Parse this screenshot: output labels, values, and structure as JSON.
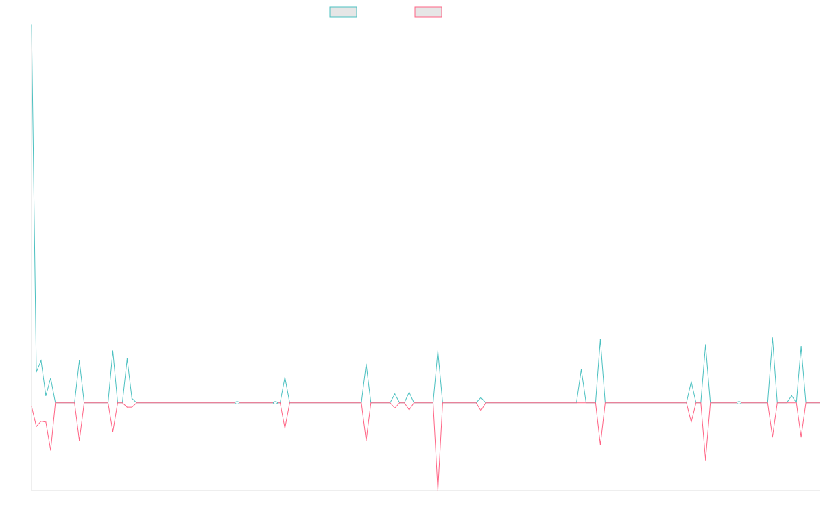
{
  "chart_data": {
    "type": "line",
    "title": "",
    "xlabel": "",
    "ylabel": "",
    "grid": false,
    "legend_position": "top-center",
    "x_count": 161,
    "ylim": [
      -10,
      43
    ],
    "series": [
      {
        "color": "#4bc0c0",
        "fill": "#e6e6e6",
        "points": [
          [
            0,
            43
          ],
          [
            1,
            3.5
          ],
          [
            2,
            4.8
          ],
          [
            3,
            0.8
          ],
          [
            4,
            2.8
          ],
          [
            5,
            0
          ],
          [
            9,
            0
          ],
          [
            10,
            4.8
          ],
          [
            11,
            0
          ],
          [
            16,
            0
          ],
          [
            17,
            5.9
          ],
          [
            18,
            0
          ],
          [
            19,
            0
          ],
          [
            20,
            5.0
          ],
          [
            21,
            0.5
          ],
          [
            22,
            0
          ],
          [
            52,
            0
          ],
          [
            53,
            2.9
          ],
          [
            54,
            0
          ],
          [
            69,
            0
          ],
          [
            70,
            4.4
          ],
          [
            71,
            0
          ],
          [
            75,
            0
          ],
          [
            76,
            1.0
          ],
          [
            77,
            0
          ],
          [
            78,
            0
          ],
          [
            79,
            1.2
          ],
          [
            80,
            0
          ],
          [
            84,
            0
          ],
          [
            85,
            5.9
          ],
          [
            86,
            0
          ],
          [
            93,
            0
          ],
          [
            94,
            0.6
          ],
          [
            95,
            0
          ],
          [
            114,
            0
          ],
          [
            115,
            3.8
          ],
          [
            116,
            0
          ],
          [
            118,
            0
          ],
          [
            119,
            7.2
          ],
          [
            120,
            0
          ],
          [
            137,
            0
          ],
          [
            138,
            2.4
          ],
          [
            139,
            0
          ],
          [
            140,
            0
          ],
          [
            141,
            6.6
          ],
          [
            142,
            0
          ],
          [
            154,
            0
          ],
          [
            155,
            7.4
          ],
          [
            156,
            0
          ],
          [
            158,
            0
          ],
          [
            159,
            0.8
          ],
          [
            160,
            0
          ],
          [
            161,
            6.4
          ],
          [
            162,
            0
          ],
          [
            165,
            0
          ]
        ]
      },
      {
        "color": "#ff6384",
        "fill": "#e6e6e6",
        "points": [
          [
            0,
            -0.4
          ],
          [
            1,
            -2.7
          ],
          [
            2,
            -2.1
          ],
          [
            3,
            -2.2
          ],
          [
            4,
            -5.4
          ],
          [
            5,
            0
          ],
          [
            9,
            0
          ],
          [
            10,
            -4.3
          ],
          [
            11,
            0
          ],
          [
            16,
            0
          ],
          [
            17,
            -3.3
          ],
          [
            18,
            0
          ],
          [
            19,
            0
          ],
          [
            20,
            -0.5
          ],
          [
            21,
            -0.5
          ],
          [
            22,
            0
          ],
          [
            52,
            0
          ],
          [
            53,
            -2.9
          ],
          [
            54,
            0
          ],
          [
            69,
            0
          ],
          [
            70,
            -4.3
          ],
          [
            71,
            0
          ],
          [
            75,
            0
          ],
          [
            76,
            -0.6
          ],
          [
            77,
            0
          ],
          [
            78,
            0
          ],
          [
            79,
            -0.8
          ],
          [
            80,
            0
          ],
          [
            84,
            0
          ],
          [
            85,
            -10.0
          ],
          [
            86,
            0
          ],
          [
            93,
            0
          ],
          [
            94,
            -0.9
          ],
          [
            95,
            0
          ],
          [
            118,
            0
          ],
          [
            119,
            -4.8
          ],
          [
            120,
            0
          ],
          [
            137,
            0
          ],
          [
            138,
            -2.2
          ],
          [
            139,
            0
          ],
          [
            140,
            0
          ],
          [
            141,
            -6.5
          ],
          [
            142,
            0
          ],
          [
            154,
            0
          ],
          [
            155,
            -3.9
          ],
          [
            156,
            0
          ],
          [
            160,
            0
          ],
          [
            161,
            -3.9
          ],
          [
            162,
            0
          ],
          [
            165,
            0
          ]
        ]
      }
    ]
  }
}
